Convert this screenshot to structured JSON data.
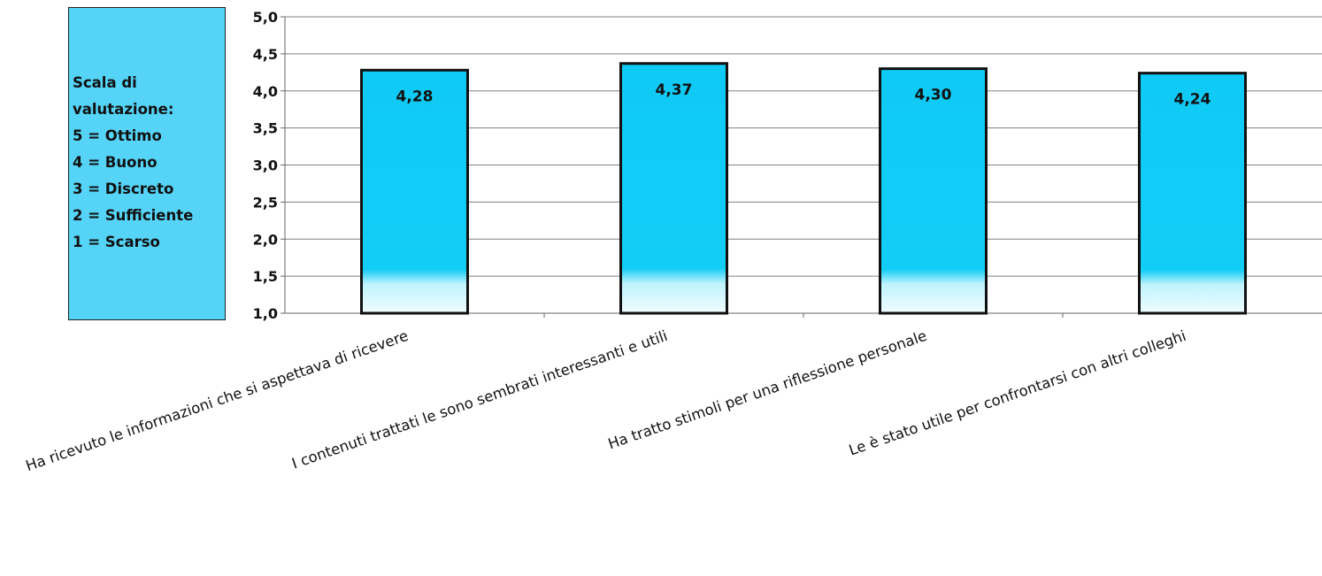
{
  "legend": {
    "lines": [
      "Scala di",
      "valutazione:",
      "5 = Ottimo",
      "4 = Buono",
      "3 = Discreto",
      "2 = Sufficiente",
      "1 = Scarso"
    ]
  },
  "colors": {
    "bar": "#0fcaf5",
    "bar_base": "#e8fcff",
    "legend_bg": "#55d4f7",
    "grid": "#808080"
  },
  "chart_data": {
    "type": "bar",
    "categories": [
      "Ha ricevuto le informazioni che si aspettava di ricevere",
      "I contenuti trattati le sono sembrati interessanti e utili",
      "Ha tratto stimoli per una riflessione personale",
      "Le è stato utile per confrontarsi con altri colleghi"
    ],
    "values": [
      4.28,
      4.37,
      4.3,
      4.24
    ],
    "data_labels": [
      "4,28",
      "4,37",
      "4,30",
      "4,24"
    ],
    "y_ticks": [
      "1,0",
      "1,5",
      "2,0",
      "2,5",
      "3,0",
      "3,5",
      "4,0",
      "4,5",
      "5,0"
    ],
    "ylim": [
      1,
      5
    ],
    "title": "",
    "xlabel": "",
    "ylabel": "",
    "grid": true,
    "legend": "none"
  }
}
